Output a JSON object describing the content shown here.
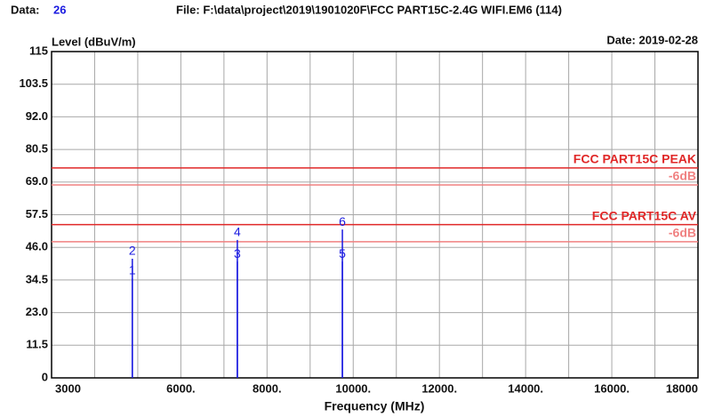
{
  "header": {
    "data_label": "Data:",
    "data_number": "26",
    "file": "File: F:\\data\\project\\2019\\1901020F\\FCC PART15C-2.4G WIFI.EM6  (114)",
    "date": "Date: 2019-02-28"
  },
  "chart_data": {
    "type": "spectrum",
    "y_label": "Level (dBuV/m)",
    "x_label": "Frequency (MHz)",
    "xlim": [
      3000,
      18000
    ],
    "ylim": [
      0,
      115
    ],
    "xticks": [
      3000,
      {
        "value": 6000,
        "label": "6000."
      },
      {
        "value": 8000,
        "label": "8000."
      },
      {
        "value": 10000,
        "label": "10000."
      },
      {
        "value": 12000,
        "label": "12000."
      },
      {
        "value": 14000,
        "label": "14000."
      },
      {
        "value": 16000,
        "label": "16000."
      },
      18000
    ],
    "xminor": [
      4000,
      5000,
      7000,
      9000,
      11000,
      13000,
      15000,
      17000
    ],
    "yticks": [
      0,
      11.5,
      {
        "value": 23,
        "label": "23.0"
      },
      34.5,
      {
        "value": 46,
        "label": "46.0"
      },
      57.5,
      {
        "value": 69,
        "label": "69.0"
      },
      80.5,
      {
        "value": 92,
        "label": "92.0"
      },
      103.5,
      115
    ],
    "grid": true,
    "limits": [
      {
        "name": "FCC PART15C PEAK",
        "value": 74,
        "color": "#e02828"
      },
      {
        "name": "-6dB",
        "value": 68,
        "color": "#f08080"
      },
      {
        "name": "FCC PART15C AV",
        "value": 54,
        "color": "#e02828"
      },
      {
        "name": "-6dB",
        "value": 48,
        "color": "#f08080"
      }
    ],
    "markers": {
      "labels": [
        "1",
        "2",
        "3",
        "4",
        "5",
        "6"
      ],
      "x": [
        4874,
        4874,
        7311,
        7311,
        9748,
        9748
      ],
      "values": [
        35.1,
        42.0,
        41.0,
        48.6,
        41.0,
        52.3
      ]
    },
    "color": "#1a1ae0"
  }
}
